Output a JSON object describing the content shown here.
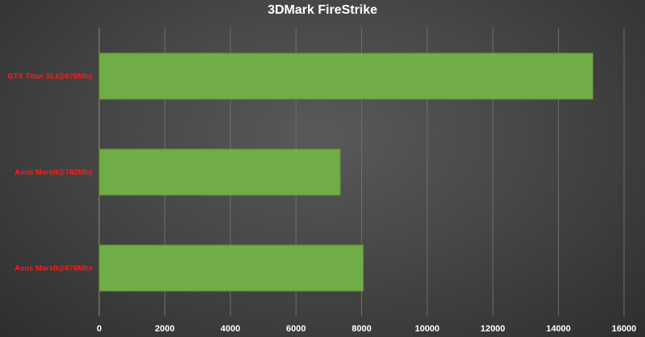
{
  "chart_data": {
    "type": "bar",
    "orientation": "horizontal",
    "title": "3DMark FireStrike",
    "xlabel": "",
    "ylabel": "",
    "categories": [
      "GTX Titan SLI@876Mhz",
      "Asus MarsII@782Mhz",
      "Asus MarsII@876Mhz"
    ],
    "values": [
      15050,
      7350,
      8050
    ],
    "xlim": [
      0,
      16000
    ],
    "xticks": [
      "0",
      "2000",
      "4000",
      "6000",
      "8000",
      "10000",
      "12000",
      "14000",
      "16000"
    ],
    "grid": "vertical",
    "legend": "none",
    "colors": {
      "bar": "#70ad47",
      "category_label": "#ff1a1a",
      "grid": "#6e6e6e",
      "text": "#ffffff"
    }
  }
}
